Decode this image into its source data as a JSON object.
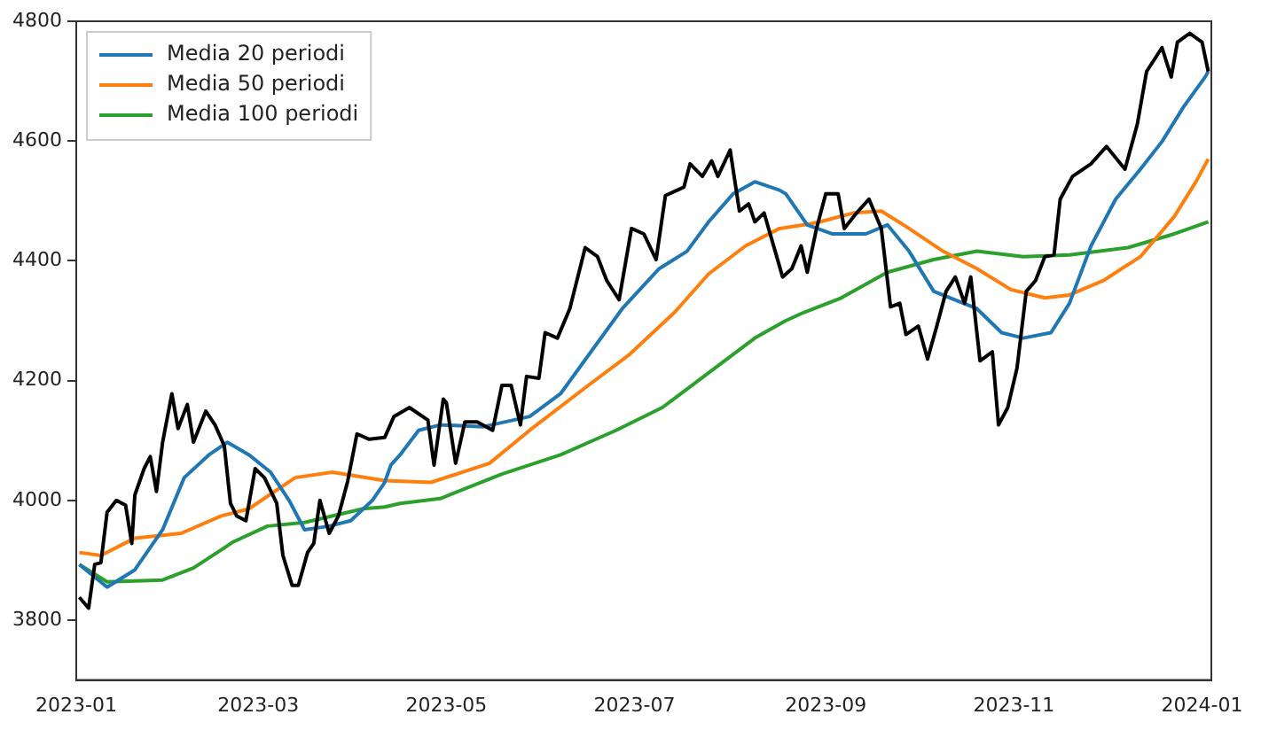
{
  "chart_data": {
    "type": "line",
    "xlim": [
      "2023-01-01",
      "2024-01-04"
    ],
    "xticks": [
      "2023-01",
      "2023-03",
      "2023-05",
      "2023-07",
      "2023-09",
      "2023-11",
      "2024-01"
    ],
    "ylim": [
      3700,
      4800
    ],
    "yticks": [
      3800,
      4000,
      4200,
      4400,
      4600,
      4800
    ],
    "grid": false,
    "legend": "top left",
    "marker": "none",
    "line_style": "solid",
    "series": [
      {
        "color": "#000000",
        "x": [
          "2023-01-02",
          "2023-01-05",
          "2023-01-07",
          "2023-01-09",
          "2023-01-11",
          "2023-01-14",
          "2023-01-17",
          "2023-01-19",
          "2023-01-20",
          "2023-01-23",
          "2023-01-25",
          "2023-01-27",
          "2023-01-29",
          "2023-02-01",
          "2023-02-03",
          "2023-02-06",
          "2023-02-08",
          "2023-02-12",
          "2023-02-15",
          "2023-02-18",
          "2023-02-20",
          "2023-02-22",
          "2023-02-25",
          "2023-02-28",
          "2023-03-03",
          "2023-03-07",
          "2023-03-09",
          "2023-03-12",
          "2023-03-14",
          "2023-03-17",
          "2023-03-19",
          "2023-03-21",
          "2023-03-24",
          "2023-03-27",
          "2023-03-30",
          "2023-04-02",
          "2023-04-06",
          "2023-04-11",
          "2023-04-14",
          "2023-04-19",
          "2023-04-25",
          "2023-04-27",
          "2023-04-30",
          "2023-05-01",
          "2023-05-04",
          "2023-05-07",
          "2023-05-11",
          "2023-05-16",
          "2023-05-19",
          "2023-05-22",
          "2023-05-25",
          "2023-05-27",
          "2023-05-31",
          "2023-06-02",
          "2023-06-06",
          "2023-06-10",
          "2023-06-15",
          "2023-06-19",
          "2023-06-22",
          "2023-06-26",
          "2023-06-30",
          "2023-07-04",
          "2023-07-08",
          "2023-07-11",
          "2023-07-17",
          "2023-07-19",
          "2023-07-23",
          "2023-07-26",
          "2023-07-28",
          "2023-08-01",
          "2023-08-04",
          "2023-08-07",
          "2023-08-09",
          "2023-08-12",
          "2023-08-18",
          "2023-08-21",
          "2023-08-24",
          "2023-08-26",
          "2023-08-29",
          "2023-09-01",
          "2023-09-05",
          "2023-09-07",
          "2023-09-11",
          "2023-09-15",
          "2023-09-19",
          "2023-09-22",
          "2023-09-25",
          "2023-09-27",
          "2023-10-01",
          "2023-10-04",
          "2023-10-07",
          "2023-10-10",
          "2023-10-13",
          "2023-10-16",
          "2023-10-18",
          "2023-10-21",
          "2023-10-25",
          "2023-10-27",
          "2023-10-30",
          "2023-11-02",
          "2023-11-05",
          "2023-11-08",
          "2023-11-11",
          "2023-11-14",
          "2023-11-16",
          "2023-11-20",
          "2023-11-26",
          "2023-12-01",
          "2023-12-07",
          "2023-12-11",
          "2023-12-14",
          "2023-12-19",
          "2023-12-22",
          "2023-12-24",
          "2023-12-28",
          "2024-01-01",
          "2024-01-03"
        ],
        "values": [
          3838,
          3820,
          3893,
          3896,
          3980,
          4000,
          3992,
          3928,
          4009,
          4053,
          4073,
          4015,
          4097,
          4178,
          4120,
          4160,
          4097,
          4149,
          4126,
          4091,
          3995,
          3974,
          3966,
          4053,
          4038,
          3995,
          3908,
          3858,
          3858,
          3913,
          3928,
          4000,
          3945,
          3974,
          4032,
          4111,
          4102,
          4105,
          4140,
          4155,
          4134,
          4059,
          4169,
          4163,
          4062,
          4131,
          4131,
          4117,
          4192,
          4192,
          4126,
          4207,
          4204,
          4280,
          4271,
          4320,
          4422,
          4407,
          4367,
          4335,
          4454,
          4445,
          4402,
          4509,
          4523,
          4562,
          4541,
          4567,
          4541,
          4585,
          4483,
          4495,
          4465,
          4480,
          4373,
          4387,
          4425,
          4381,
          4454,
          4512,
          4512,
          4454,
          4480,
          4503,
          4454,
          4323,
          4329,
          4277,
          4291,
          4236,
          4291,
          4349,
          4373,
          4329,
          4373,
          4233,
          4248,
          4126,
          4155,
          4221,
          4349,
          4367,
          4407,
          4410,
          4503,
          4541,
          4562,
          4591,
          4553,
          4628,
          4716,
          4756,
          4707,
          4765,
          4780,
          4765,
          4716
        ]
      },
      {
        "name": "Media 20 periodi",
        "color": "#1f77b4",
        "x": [
          "2023-01-02",
          "2023-01-11",
          "2023-01-20",
          "2023-01-29",
          "2023-02-05",
          "2023-02-13",
          "2023-02-19",
          "2023-02-26",
          "2023-03-05",
          "2023-03-11",
          "2023-03-16",
          "2023-03-24",
          "2023-03-31",
          "2023-04-07",
          "2023-04-11",
          "2023-04-13",
          "2023-04-16",
          "2023-04-22",
          "2023-04-29",
          "2023-05-13",
          "2023-05-28",
          "2023-06-07",
          "2023-06-16",
          "2023-06-27",
          "2023-07-09",
          "2023-07-18",
          "2023-07-25",
          "2023-08-02",
          "2023-08-09",
          "2023-08-17",
          "2023-08-19",
          "2023-08-26",
          "2023-09-03",
          "2023-09-14",
          "2023-09-21",
          "2023-09-28",
          "2023-10-06",
          "2023-10-20",
          "2023-10-28",
          "2023-11-04",
          "2023-11-13",
          "2023-11-19",
          "2023-11-26",
          "2023-12-04",
          "2023-12-12",
          "2023-12-19",
          "2023-12-26",
          "2024-01-02",
          "2024-01-03"
        ],
        "values": [
          3893,
          3855,
          3884,
          3951,
          4038,
          4076,
          4097,
          4076,
          4047,
          4000,
          3951,
          3957,
          3966,
          4000,
          4030,
          4059,
          4076,
          4117,
          4126,
          4123,
          4140,
          4178,
          4242,
          4320,
          4387,
          4416,
          4465,
          4512,
          4532,
          4518,
          4512,
          4460,
          4445,
          4445,
          4460,
          4416,
          4349,
          4320,
          4280,
          4271,
          4280,
          4329,
          4425,
          4503,
          4553,
          4599,
          4657,
          4707,
          4716
        ]
      },
      {
        "name": "Media 50 periodi",
        "color": "#ff7f0e",
        "x": [
          "2023-01-02",
          "2023-01-09",
          "2023-01-20",
          "2023-02-04",
          "2023-02-17",
          "2023-02-26",
          "2023-03-13",
          "2023-03-25",
          "2023-04-11",
          "2023-04-26",
          "2023-05-15",
          "2023-05-28",
          "2023-06-16",
          "2023-06-29",
          "2023-07-14",
          "2023-07-25",
          "2023-08-06",
          "2023-08-17",
          "2023-08-25",
          "2023-08-30",
          "2023-09-10",
          "2023-09-19",
          "2023-09-28",
          "2023-10-09",
          "2023-10-20",
          "2023-10-31",
          "2023-11-11",
          "2023-11-19",
          "2023-11-30",
          "2023-12-12",
          "2023-12-23",
          "2023-12-30",
          "2024-01-03"
        ],
        "values": [
          3913,
          3908,
          3937,
          3945,
          3974,
          3986,
          4038,
          4047,
          4033,
          4030,
          4062,
          4117,
          4192,
          4242,
          4314,
          4378,
          4425,
          4454,
          4460,
          4465,
          4480,
          4483,
          4454,
          4416,
          4387,
          4352,
          4338,
          4343,
          4367,
          4407,
          4474,
          4532,
          4570
        ]
      },
      {
        "name": "Media 100 periodi",
        "color": "#2ca02c",
        "x": [
          "2023-01-02",
          "2023-01-11",
          "2023-01-29",
          "2023-02-08",
          "2023-02-21",
          "2023-03-04",
          "2023-03-16",
          "2023-04-04",
          "2023-04-11",
          "2023-04-16",
          "2023-04-29",
          "2023-05-19",
          "2023-06-07",
          "2023-06-25",
          "2023-07-10",
          "2023-07-25",
          "2023-08-09",
          "2023-08-19",
          "2023-08-25",
          "2023-09-06",
          "2023-09-21",
          "2023-10-06",
          "2023-10-20",
          "2023-11-04",
          "2023-11-19",
          "2023-12-08",
          "2023-12-23",
          "2024-01-03"
        ],
        "values": [
          3893,
          3864,
          3867,
          3887,
          3931,
          3957,
          3963,
          3986,
          3989,
          3995,
          4003,
          4044,
          4076,
          4117,
          4155,
          4213,
          4271,
          4300,
          4314,
          4338,
          4381,
          4402,
          4416,
          4407,
          4410,
          4422,
          4445,
          4465
        ]
      }
    ]
  }
}
